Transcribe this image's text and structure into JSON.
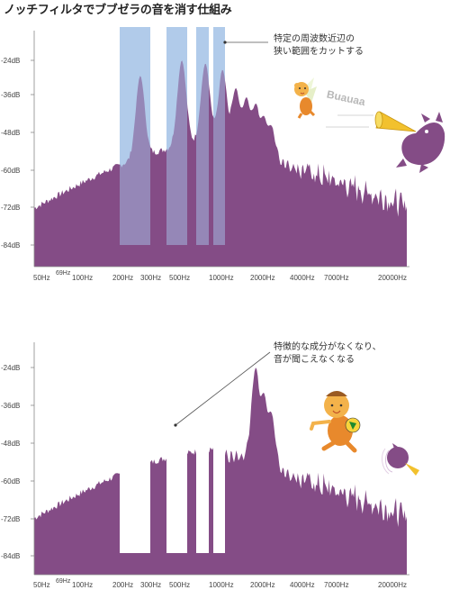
{
  "title": "ノッチフィルタでブブゼラの音を消す仕組み",
  "y_tick_labels": [
    "-24dB",
    "-36dB",
    "-48dB",
    "-60dB",
    "-72dB",
    "-84dB"
  ],
  "x_tick_labels": [
    "50Hz",
    "69Hz",
    "100Hz",
    "200Hz",
    "300Hz",
    "500Hz",
    "1000Hz",
    "2000Hz",
    "4000Hz",
    "7000Hz",
    "20000Hz"
  ],
  "top_panel": {
    "annotation_lines": [
      "特定の周波数近辺の",
      "狭い範囲をカットする"
    ],
    "sound_text": "Buauaa"
  },
  "bottom_panel": {
    "annotation_lines": [
      "特徴的な成分がなくなり、",
      "音が聞こえなくなる"
    ]
  },
  "chart_data": [
    {
      "type": "area",
      "title": "",
      "xscale": "log",
      "xlim": [
        40,
        22000
      ],
      "ylim": [
        -90,
        -15
      ],
      "ylabel": "",
      "xlabel": "",
      "peaks_hz": [
        233,
        470,
        700,
        935,
        1170,
        1400,
        1640,
        1870,
        2100
      ],
      "peak_levels_db": [
        -29,
        -24,
        -25,
        -27,
        -33,
        -36,
        -38,
        -42,
        -45
      ],
      "notch_bands_hz": [
        [
          140,
          320
        ],
        [
          370,
          580
        ],
        [
          620,
          790
        ],
        [
          840,
          1060
        ]
      ],
      "notch_floor_db": -84
    },
    {
      "type": "area",
      "title": "",
      "xscale": "log",
      "xlim": [
        40,
        22000
      ],
      "ylim": [
        -90,
        -15
      ],
      "peaks_hz": [
        1640,
        1870,
        2100
      ],
      "peak_levels_db": [
        -24,
        -32,
        -38
      ],
      "notched_out_bands_hz": [
        [
          140,
          320
        ],
        [
          370,
          580
        ],
        [
          620,
          790
        ],
        [
          840,
          1060
        ]
      ],
      "notch_floor_db": -84
    }
  ],
  "colors": {
    "spectrum": "#844c86",
    "notch_band": "#c2e2f6",
    "notch_overlay": "#8d8fc3",
    "axis": "#888888"
  }
}
